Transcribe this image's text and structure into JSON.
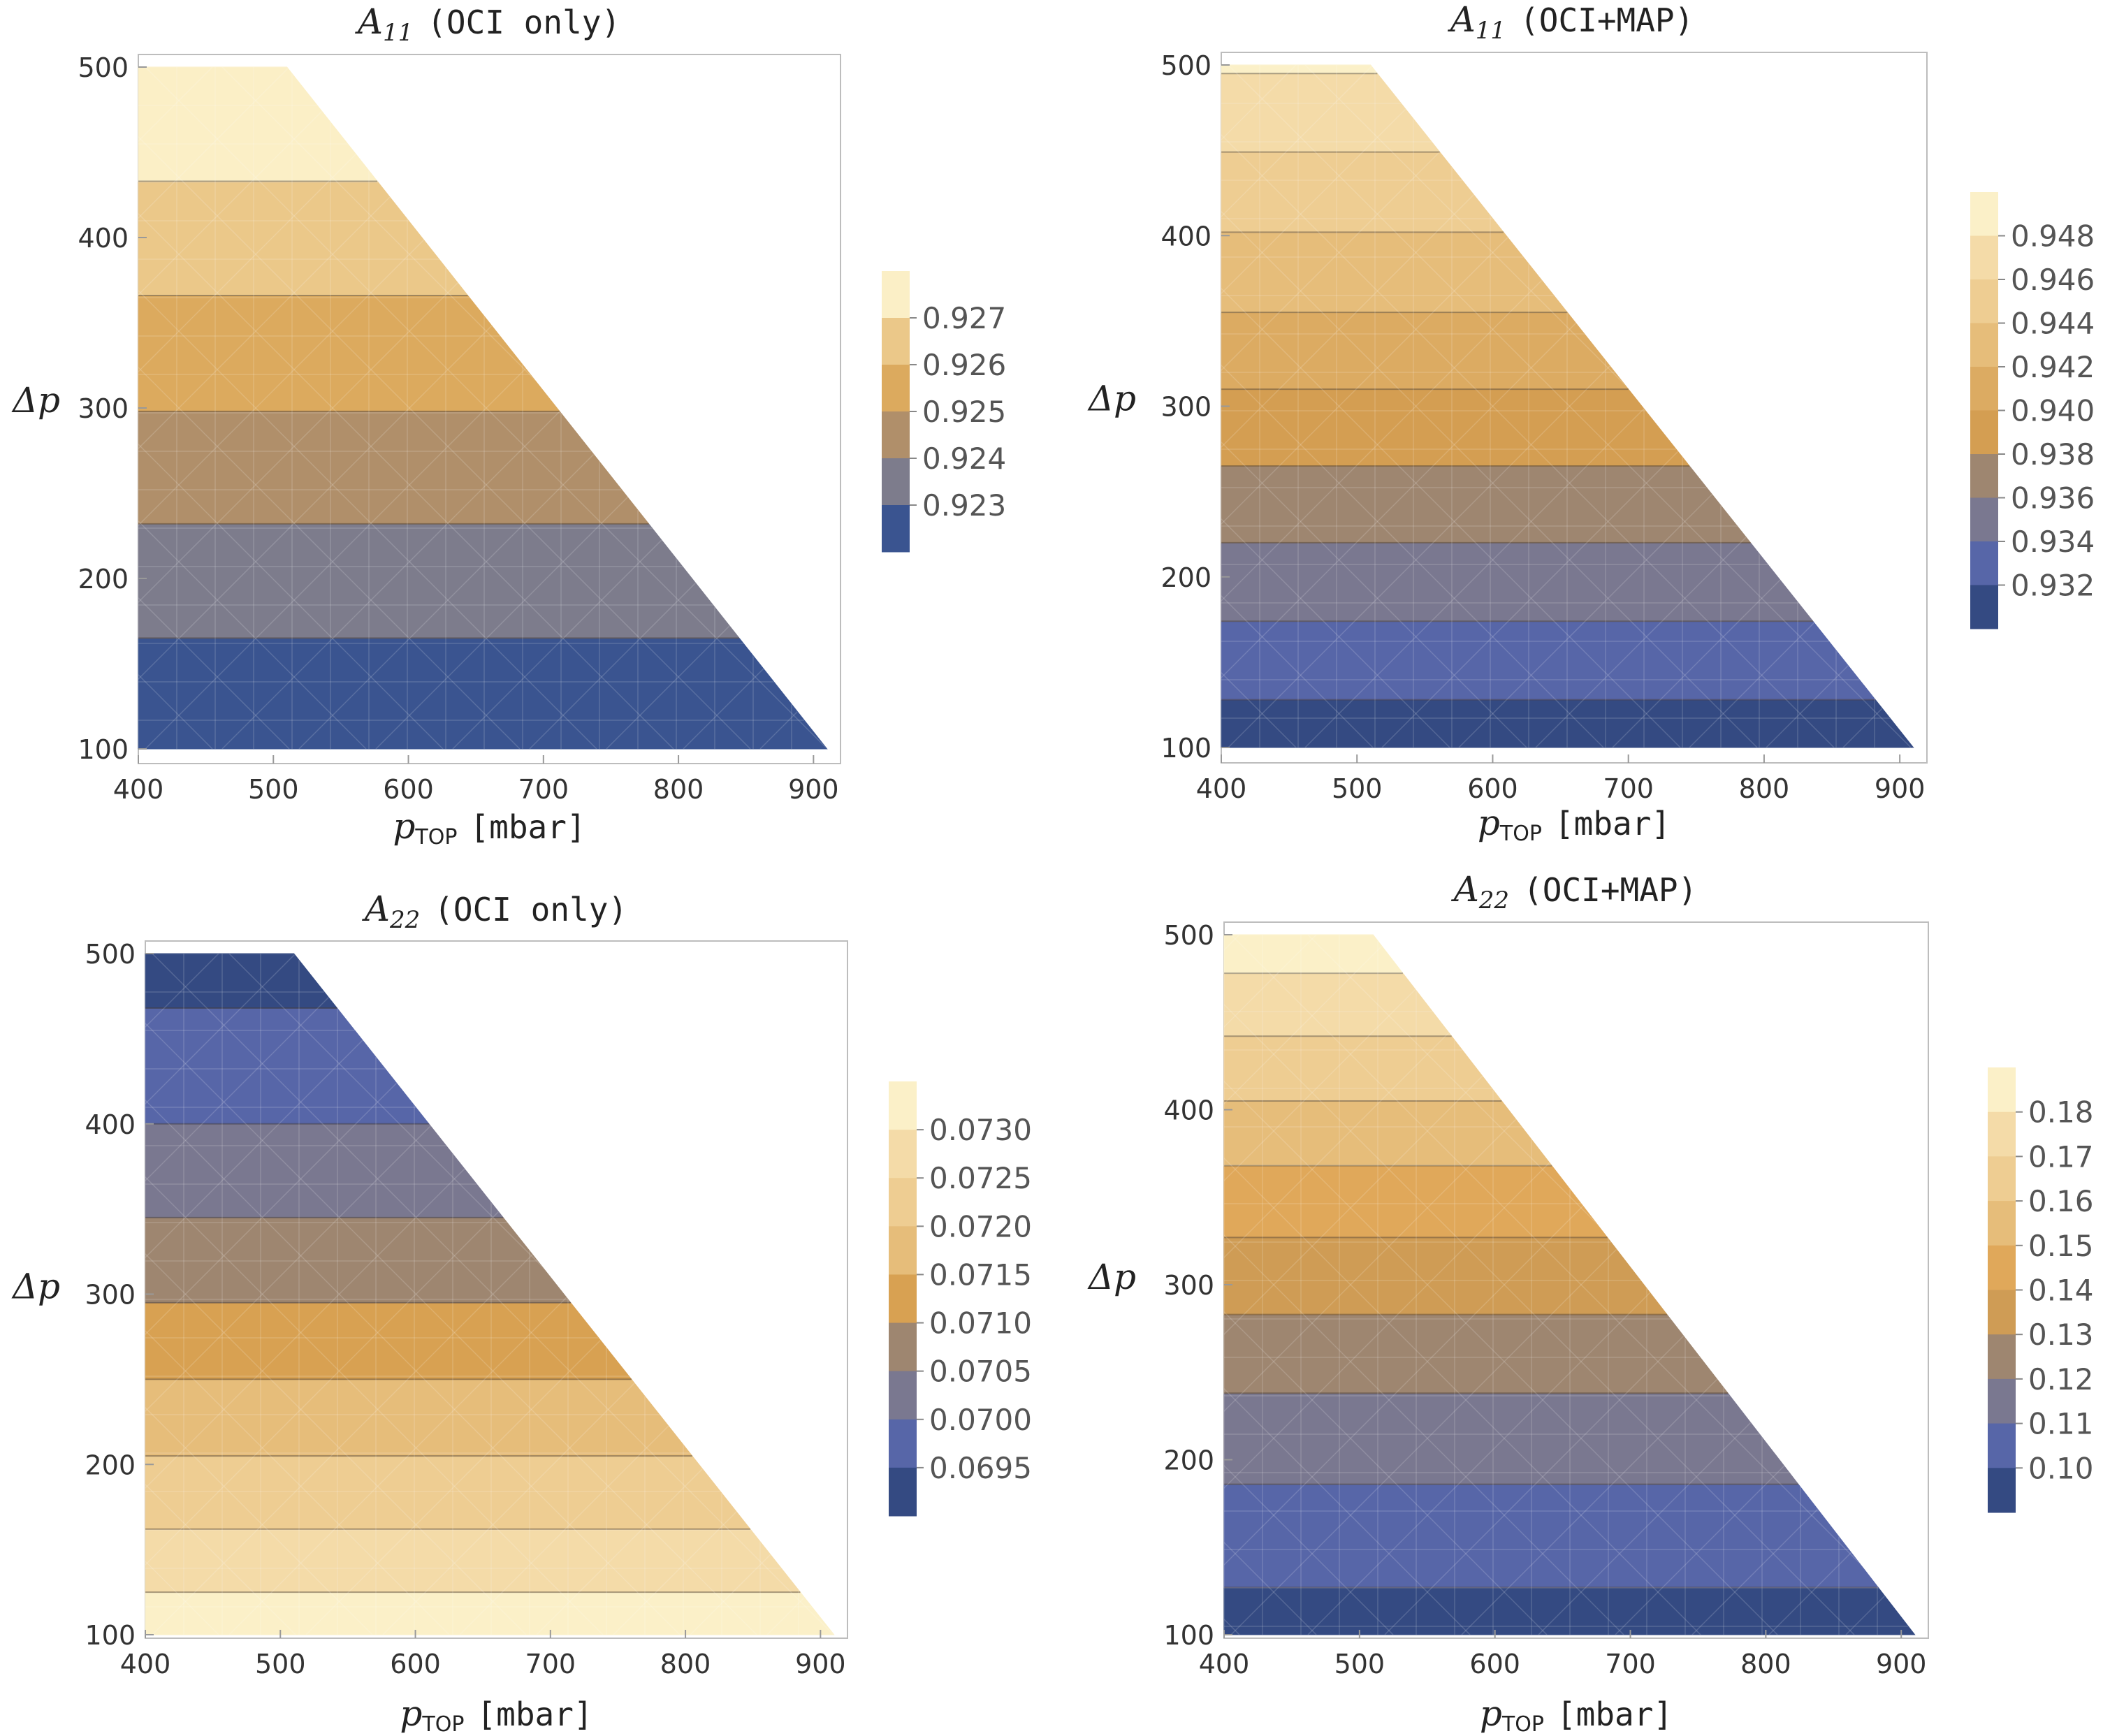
{
  "chart_data": [
    {
      "type": "contour",
      "title": "A11 (OCI only)",
      "title_main": "A",
      "title_sub": "11",
      "title_rest": "(OCI only)",
      "xlabel": "pTOP [mbar]",
      "xlabel_main": "p",
      "xlabel_sub": "TOP",
      "xlabel_unit": "[mbar]",
      "ylabel": "Δp",
      "xlim": [
        400,
        920
      ],
      "ylim": [
        100,
        500
      ],
      "xticks": [
        "400",
        "500",
        "600",
        "700",
        "800",
        "900"
      ],
      "yticks": [
        "100",
        "200",
        "300",
        "400",
        "500"
      ],
      "domain_boundary": "valid where p_TOP + Δp ≤ 1010 mbar",
      "levels": [
        {
          "from": 100,
          "to": 165,
          "color": "#3a5490"
        },
        {
          "from": 165,
          "to": 232,
          "color": "#7d7c8c"
        },
        {
          "from": 232,
          "to": 298,
          "color": "#b08f6a"
        },
        {
          "from": 298,
          "to": 366,
          "color": "#dcaa5e"
        },
        {
          "from": 366,
          "to": 433,
          "color": "#ebc889"
        },
        {
          "from": 433,
          "to": 500,
          "color": "#fbefc6"
        }
      ],
      "legend": {
        "labels": [
          "0.927",
          "0.926",
          "0.925",
          "0.924",
          "0.923"
        ],
        "colors": [
          "#fbefc6",
          "#ebc889",
          "#dcaa5e",
          "#b08f6a",
          "#7d7c8c",
          "#3a5490"
        ]
      }
    },
    {
      "type": "contour",
      "title": "A11 (OCI+MAP)",
      "title_main": "A",
      "title_sub": "11",
      "title_rest": "(OCI+MAP)",
      "xlabel": "pTOP [mbar]",
      "xlabel_main": "p",
      "xlabel_sub": "TOP",
      "xlabel_unit": "[mbar]",
      "ylabel": "Δp",
      "xlim": [
        400,
        920
      ],
      "ylim": [
        100,
        500
      ],
      "xticks": [
        "400",
        "500",
        "600",
        "700",
        "800",
        "900"
      ],
      "yticks": [
        "100",
        "200",
        "300",
        "400",
        "500"
      ],
      "domain_boundary": "valid where p_TOP + Δp ≤ 1010 mbar",
      "levels": [
        {
          "from": 100,
          "to": 128,
          "color": "#344a82"
        },
        {
          "from": 128,
          "to": 174,
          "color": "#5766a8"
        },
        {
          "from": 174,
          "to": 220,
          "color": "#7a7890"
        },
        {
          "from": 220,
          "to": 265,
          "color": "#9e8670"
        },
        {
          "from": 265,
          "to": 310,
          "color": "#d49e52"
        },
        {
          "from": 310,
          "to": 355,
          "color": "#dcab62"
        },
        {
          "from": 355,
          "to": 402,
          "color": "#e6bd7a"
        },
        {
          "from": 402,
          "to": 449,
          "color": "#eecd92"
        },
        {
          "from": 449,
          "to": 495,
          "color": "#f4dba8"
        },
        {
          "from": 495,
          "to": 500,
          "color": "#fbf0c8"
        }
      ],
      "legend": {
        "labels": [
          "0.948",
          "0.946",
          "0.944",
          "0.942",
          "0.940",
          "0.938",
          "0.936",
          "0.934",
          "0.932"
        ],
        "colors": [
          "#fbf0c8",
          "#f4dba8",
          "#eecd92",
          "#e6bd7a",
          "#dcab62",
          "#d49e52",
          "#9e8670",
          "#7a7890",
          "#5766a8",
          "#344a82"
        ]
      }
    },
    {
      "type": "contour",
      "title": "A22 (OCI only)",
      "title_main": "A",
      "title_sub": "22",
      "title_rest": "(OCI only)",
      "xlabel": "pTOP [mbar]",
      "xlabel_main": "p",
      "xlabel_sub": "TOP",
      "xlabel_unit": "[mbar]",
      "ylabel": "Δp",
      "xlim": [
        400,
        920
      ],
      "ylim": [
        100,
        500
      ],
      "xticks": [
        "400",
        "500",
        "600",
        "700",
        "800",
        "900"
      ],
      "yticks": [
        "100",
        "200",
        "300",
        "400",
        "500"
      ],
      "domain_boundary": "valid where p_TOP + Δp ≤ 1010 mbar",
      "levels": [
        {
          "from": 100,
          "to": 125,
          "color": "#fbf0c8"
        },
        {
          "from": 125,
          "to": 162,
          "color": "#f4dba8"
        },
        {
          "from": 162,
          "to": 205,
          "color": "#eecd92"
        },
        {
          "from": 205,
          "to": 250,
          "color": "#e6bd7a"
        },
        {
          "from": 250,
          "to": 295,
          "color": "#d8a152"
        },
        {
          "from": 295,
          "to": 345,
          "color": "#9e8670"
        },
        {
          "from": 345,
          "to": 400,
          "color": "#7a7890"
        },
        {
          "from": 400,
          "to": 468,
          "color": "#5766a8"
        },
        {
          "from": 468,
          "to": 500,
          "color": "#344a82"
        }
      ],
      "legend": {
        "labels": [
          "0.0730",
          "0.0725",
          "0.0720",
          "0.0715",
          "0.0710",
          "0.0705",
          "0.0700",
          "0.0695"
        ],
        "colors": [
          "#fbf0c8",
          "#f4dba8",
          "#eecd92",
          "#e6bd7a",
          "#d8a152",
          "#9e8670",
          "#7a7890",
          "#5766a8",
          "#344a82"
        ]
      }
    },
    {
      "type": "contour",
      "title": "A22 (OCI+MAP)",
      "title_main": "A",
      "title_sub": "22",
      "title_rest": "(OCI+MAP)",
      "xlabel": "pTOP [mbar]",
      "xlabel_main": "p",
      "xlabel_sub": "TOP",
      "xlabel_unit": "[mbar]",
      "ylabel": "Δp",
      "xlim": [
        400,
        920
      ],
      "ylim": [
        100,
        500
      ],
      "xticks": [
        "400",
        "500",
        "600",
        "700",
        "800",
        "900"
      ],
      "yticks": [
        "100",
        "200",
        "300",
        "400",
        "500"
      ],
      "domain_boundary": "valid where p_TOP + Δp ≤ 1010 mbar",
      "levels": [
        {
          "from": 100,
          "to": 127,
          "color": "#344a82"
        },
        {
          "from": 127,
          "to": 186,
          "color": "#5766a8"
        },
        {
          "from": 186,
          "to": 238,
          "color": "#7a7890"
        },
        {
          "from": 238,
          "to": 283,
          "color": "#9e8670"
        },
        {
          "from": 283,
          "to": 327,
          "color": "#cf9c55"
        },
        {
          "from": 327,
          "to": 368,
          "color": "#e0a85a"
        },
        {
          "from": 368,
          "to": 405,
          "color": "#e6bd7a"
        },
        {
          "from": 405,
          "to": 442,
          "color": "#eecd92"
        },
        {
          "from": 442,
          "to": 478,
          "color": "#f4dba8"
        },
        {
          "from": 478,
          "to": 500,
          "color": "#fbf0c8"
        }
      ],
      "legend": {
        "labels": [
          "0.18",
          "0.17",
          "0.16",
          "0.15",
          "0.14",
          "0.13",
          "0.12",
          "0.11",
          "0.10"
        ],
        "colors": [
          "#fbf0c8",
          "#f4dba8",
          "#eecd92",
          "#e6bd7a",
          "#e0a85a",
          "#cf9c55",
          "#9e8670",
          "#7a7890",
          "#5766a8",
          "#344a82"
        ]
      }
    }
  ]
}
